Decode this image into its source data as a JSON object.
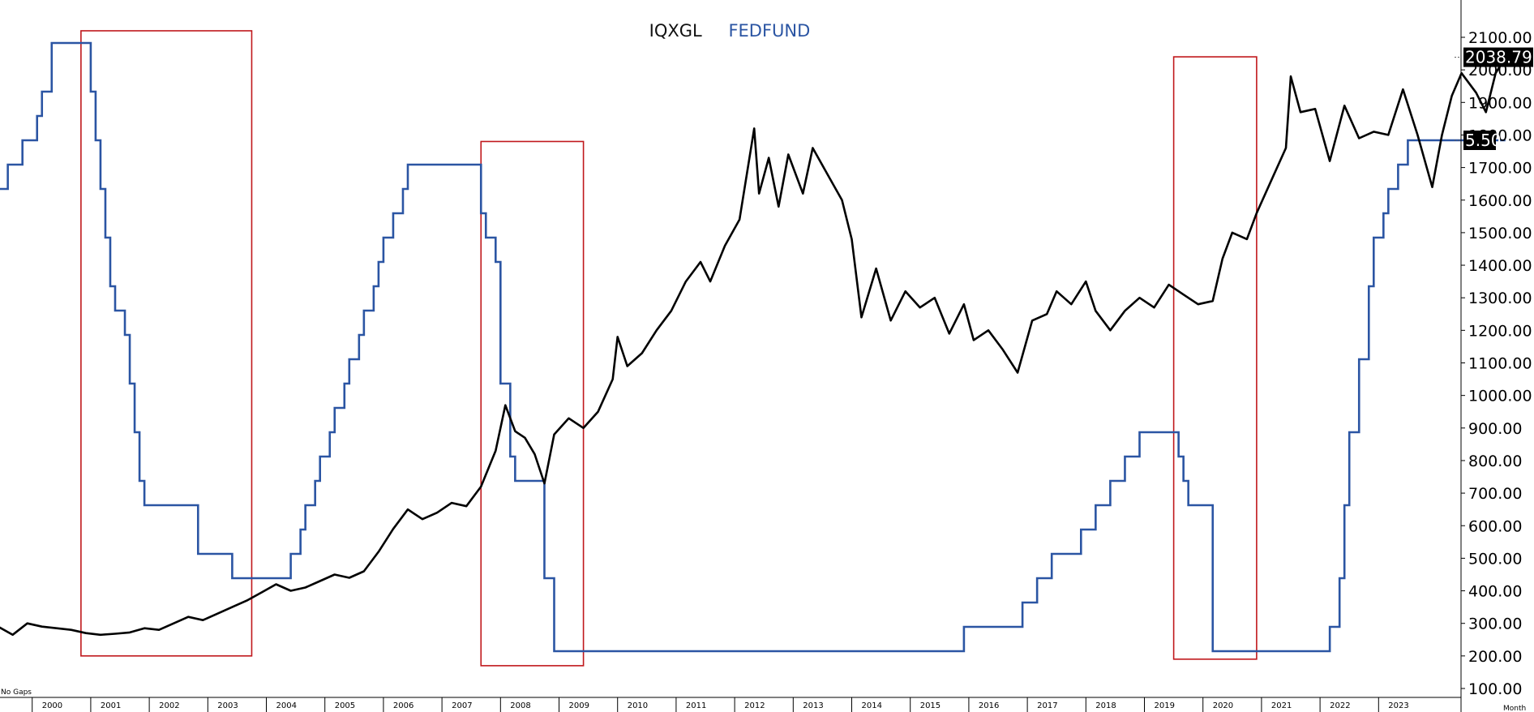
{
  "chart_data": {
    "type": "line",
    "series": [
      {
        "name": "IQXGL",
        "color": "#000000",
        "axis": "left",
        "points": [
          [
            "1999-06",
            290
          ],
          [
            "1999-09",
            265
          ],
          [
            "1999-12",
            300
          ],
          [
            "2000-03",
            290
          ],
          [
            "2000-06",
            285
          ],
          [
            "2000-09",
            280
          ],
          [
            "2000-12",
            270
          ],
          [
            "2001-03",
            265
          ],
          [
            "2001-06",
            268
          ],
          [
            "2001-09",
            272
          ],
          [
            "2001-12",
            285
          ],
          [
            "2002-03",
            280
          ],
          [
            "2002-06",
            300
          ],
          [
            "2002-09",
            320
          ],
          [
            "2002-12",
            310
          ],
          [
            "2003-03",
            330
          ],
          [
            "2003-06",
            350
          ],
          [
            "2003-09",
            370
          ],
          [
            "2003-12",
            395
          ],
          [
            "2004-03",
            420
          ],
          [
            "2004-06",
            400
          ],
          [
            "2004-09",
            410
          ],
          [
            "2004-12",
            430
          ],
          [
            "2005-03",
            450
          ],
          [
            "2005-06",
            440
          ],
          [
            "2005-09",
            460
          ],
          [
            "2005-12",
            520
          ],
          [
            "2006-03",
            590
          ],
          [
            "2006-06",
            650
          ],
          [
            "2006-09",
            620
          ],
          [
            "2006-12",
            640
          ],
          [
            "2007-03",
            670
          ],
          [
            "2007-06",
            660
          ],
          [
            "2007-09",
            720
          ],
          [
            "2007-12",
            830
          ],
          [
            "2008-02",
            970
          ],
          [
            "2008-04",
            890
          ],
          [
            "2008-06",
            870
          ],
          [
            "2008-08",
            820
          ],
          [
            "2008-10",
            730
          ],
          [
            "2008-12",
            880
          ],
          [
            "2009-03",
            930
          ],
          [
            "2009-06",
            900
          ],
          [
            "2009-09",
            950
          ],
          [
            "2009-12",
            1050
          ],
          [
            "2010-01",
            1180
          ],
          [
            "2010-03",
            1090
          ],
          [
            "2010-06",
            1130
          ],
          [
            "2010-09",
            1200
          ],
          [
            "2010-12",
            1260
          ],
          [
            "2011-03",
            1350
          ],
          [
            "2011-06",
            1410
          ],
          [
            "2011-08",
            1350
          ],
          [
            "2011-11",
            1460
          ],
          [
            "2012-02",
            1540
          ],
          [
            "2012-05",
            1820
          ],
          [
            "2012-06",
            1620
          ],
          [
            "2012-08",
            1730
          ],
          [
            "2012-10",
            1580
          ],
          [
            "2012-12",
            1740
          ],
          [
            "2013-03",
            1620
          ],
          [
            "2013-05",
            1760
          ],
          [
            "2013-08",
            1680
          ],
          [
            "2013-11",
            1600
          ],
          [
            "2014-01",
            1480
          ],
          [
            "2014-03",
            1240
          ],
          [
            "2014-06",
            1390
          ],
          [
            "2014-09",
            1230
          ],
          [
            "2014-12",
            1320
          ],
          [
            "2015-03",
            1270
          ],
          [
            "2015-06",
            1300
          ],
          [
            "2015-09",
            1190
          ],
          [
            "2015-12",
            1280
          ],
          [
            "2016-02",
            1170
          ],
          [
            "2016-05",
            1200
          ],
          [
            "2016-08",
            1140
          ],
          [
            "2016-11",
            1070
          ],
          [
            "2017-02",
            1230
          ],
          [
            "2017-05",
            1250
          ],
          [
            "2017-07",
            1320
          ],
          [
            "2017-10",
            1280
          ],
          [
            "2018-01",
            1350
          ],
          [
            "2018-03",
            1260
          ],
          [
            "2018-06",
            1200
          ],
          [
            "2018-09",
            1260
          ],
          [
            "2018-12",
            1300
          ],
          [
            "2019-03",
            1270
          ],
          [
            "2019-06",
            1340
          ],
          [
            "2019-09",
            1310
          ],
          [
            "2019-12",
            1280
          ],
          [
            "2020-03",
            1290
          ],
          [
            "2020-05",
            1420
          ],
          [
            "2020-07",
            1500
          ],
          [
            "2020-10",
            1480
          ],
          [
            "2020-12",
            1560
          ],
          [
            "2021-03",
            1660
          ],
          [
            "2021-06",
            1760
          ],
          [
            "2021-07",
            1980
          ],
          [
            "2021-09",
            1870
          ],
          [
            "2021-12",
            1880
          ],
          [
            "2022-03",
            1720
          ],
          [
            "2022-06",
            1890
          ],
          [
            "2022-09",
            1790
          ],
          [
            "2022-12",
            1810
          ],
          [
            "2023-03",
            1800
          ],
          [
            "2023-06",
            1940
          ],
          [
            "2023-09",
            1800
          ],
          [
            "2023-12",
            1640
          ],
          [
            "2024-02",
            1800
          ],
          [
            "2024-04",
            1920
          ],
          [
            "2024-06",
            1990
          ],
          [
            "2024-09",
            1930
          ],
          [
            "2024-11",
            1870
          ],
          [
            "2025-01",
            1990
          ],
          [
            "2025-03",
            2038.79
          ]
        ]
      },
      {
        "name": "FEDFUND",
        "color": "#2b55a3",
        "axis": "right",
        "points": [
          [
            "1999-06",
            5.0
          ],
          [
            "1999-08",
            5.25
          ],
          [
            "1999-11",
            5.5
          ],
          [
            "2000-02",
            5.75
          ],
          [
            "2000-03",
            6.0
          ],
          [
            "2000-05",
            6.5
          ],
          [
            "2001-01",
            6.0
          ],
          [
            "2001-02",
            5.5
          ],
          [
            "2001-03",
            5.0
          ],
          [
            "2001-04",
            4.5
          ],
          [
            "2001-05",
            4.0
          ],
          [
            "2001-06",
            3.75
          ],
          [
            "2001-08",
            3.5
          ],
          [
            "2001-09",
            3.0
          ],
          [
            "2001-10",
            2.5
          ],
          [
            "2001-11",
            2.0
          ],
          [
            "2001-12",
            1.75
          ],
          [
            "2002-11",
            1.25
          ],
          [
            "2003-06",
            1.0
          ],
          [
            "2004-06",
            1.25
          ],
          [
            "2004-08",
            1.5
          ],
          [
            "2004-09",
            1.75
          ],
          [
            "2004-11",
            2.0
          ],
          [
            "2004-12",
            2.25
          ],
          [
            "2005-02",
            2.5
          ],
          [
            "2005-03",
            2.75
          ],
          [
            "2005-05",
            3.0
          ],
          [
            "2005-06",
            3.25
          ],
          [
            "2005-08",
            3.5
          ],
          [
            "2005-09",
            3.75
          ],
          [
            "2005-11",
            4.0
          ],
          [
            "2005-12",
            4.25
          ],
          [
            "2006-01",
            4.5
          ],
          [
            "2006-03",
            4.75
          ],
          [
            "2006-05",
            5.0
          ],
          [
            "2006-06",
            5.25
          ],
          [
            "2007-09",
            4.75
          ],
          [
            "2007-10",
            4.5
          ],
          [
            "2007-12",
            4.25
          ],
          [
            "2008-01",
            3.0
          ],
          [
            "2008-03",
            2.25
          ],
          [
            "2008-04",
            2.0
          ],
          [
            "2008-10",
            1.0
          ],
          [
            "2008-12",
            0.25
          ],
          [
            "2015-12",
            0.5
          ],
          [
            "2016-12",
            0.75
          ],
          [
            "2017-03",
            1.0
          ],
          [
            "2017-06",
            1.25
          ],
          [
            "2017-12",
            1.5
          ],
          [
            "2018-03",
            1.75
          ],
          [
            "2018-06",
            2.0
          ],
          [
            "2018-09",
            2.25
          ],
          [
            "2018-12",
            2.5
          ],
          [
            "2019-08",
            2.25
          ],
          [
            "2019-09",
            2.0
          ],
          [
            "2019-10",
            1.75
          ],
          [
            "2020-03",
            0.25
          ],
          [
            "2022-03",
            0.5
          ],
          [
            "2022-05",
            1.0
          ],
          [
            "2022-06",
            1.75
          ],
          [
            "2022-07",
            2.5
          ],
          [
            "2022-09",
            3.25
          ],
          [
            "2022-11",
            4.0
          ],
          [
            "2022-12",
            4.5
          ],
          [
            "2023-02",
            4.75
          ],
          [
            "2023-03",
            5.0
          ],
          [
            "2023-05",
            5.25
          ],
          [
            "2023-07",
            5.5
          ],
          [
            "2025-03",
            5.5
          ]
        ]
      }
    ],
    "y_axis": {
      "ticks": [
        "2100.00",
        "2000.00",
        "1900.00",
        "1800.00",
        "1700.00",
        "1600.00",
        "1500.00",
        "1400.00",
        "1300.00",
        "1200.00",
        "1100.00",
        "1000.00",
        "900.00",
        "800.00",
        "700.00",
        "600.00",
        "500.00",
        "400.00",
        "300.00",
        "200.00",
        "100.00"
      ],
      "ylim": [
        60,
        2150
      ]
    },
    "x_axis": {
      "ticks": [
        "2000",
        "2001",
        "2002",
        "2003",
        "2004",
        "2005",
        "2006",
        "2007",
        "2008",
        "2009",
        "2010",
        "2011",
        "2012",
        "2013",
        "2014",
        "2015",
        "2016",
        "2017",
        "2018",
        "2019",
        "2020",
        "2021",
        "2022",
        "2023"
      ]
    },
    "last_value_tags": {
      "primary": "2038.79",
      "secondary": "5.50"
    },
    "highlight_boxes": [
      {
        "from": "2000-11",
        "to": "2003-10",
        "top": 2120,
        "bottom": 200
      },
      {
        "from": "2007-09",
        "to": "2009-06",
        "top": 1780,
        "bottom": 170
      },
      {
        "from": "2019-07",
        "to": "2020-12",
        "top": 2040,
        "bottom": 190
      }
    ],
    "corner_labels": {
      "bottom_left": "No Gaps",
      "bottom_right": "Month"
    },
    "colors": {
      "highlight": "#c0181c",
      "axis": "#000000"
    },
    "legend_placement": "top-center"
  }
}
